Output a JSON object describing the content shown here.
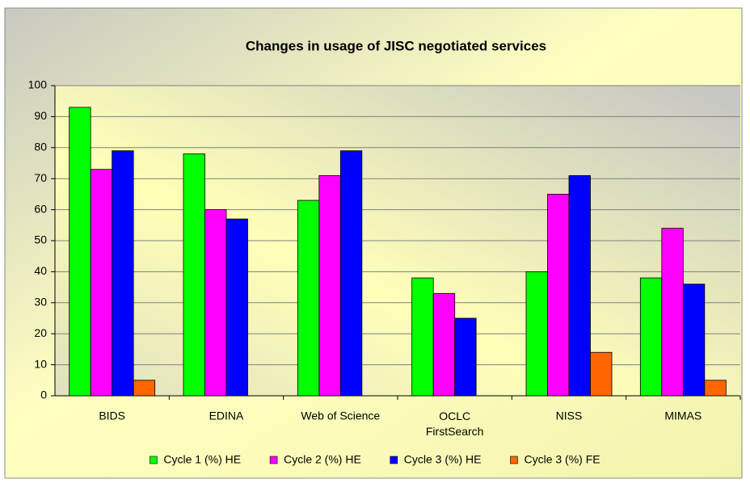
{
  "chart_data": {
    "type": "bar",
    "title": "Changes in usage of JISC negotiated services",
    "categories": [
      "BIDS",
      "EDINA",
      "Web of Science",
      "OCLC\nFirstSearch",
      "NISS",
      "MIMAS"
    ],
    "series": [
      {
        "name": "Cycle 1 (%) HE",
        "color": "#00ff00",
        "values": [
          93,
          78,
          63,
          38,
          40,
          38
        ]
      },
      {
        "name": "Cycle 2 (%) HE",
        "color": "#ff00ff",
        "values": [
          73,
          60,
          71,
          33,
          65,
          54
        ]
      },
      {
        "name": "Cycle 3 (%) HE",
        "color": "#0000ff",
        "values": [
          79,
          57,
          79,
          25,
          71,
          36
        ]
      },
      {
        "name": "Cycle 3 (%) FE",
        "color": "#ff6600",
        "values": [
          5,
          null,
          null,
          null,
          14,
          5
        ]
      }
    ],
    "ylim": [
      0,
      100
    ],
    "yticks": [
      0,
      10,
      20,
      30,
      40,
      50,
      60,
      70,
      80,
      90,
      100
    ],
    "grid": true,
    "legend": "bottom"
  }
}
